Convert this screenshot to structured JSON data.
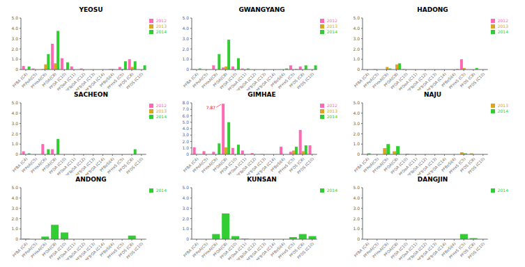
{
  "chart_data": [
    {
      "type": "bar",
      "title": "YEOSU",
      "categories": [
        "PFBA (C4)",
        "PFPeA(C5)",
        "PFHxA(C6)",
        "PFOA(C8)",
        "PFDA (C10)",
        "PFDoA (C11)",
        "PFTeDA (C12)",
        "PFTrDA (C13)",
        "PFTrOA (C14)",
        "PFBeSi(4)",
        "PFHxS (C5)",
        "PFOS (C8)",
        "PFDS (C10)"
      ],
      "series": [
        {
          "name": "2012",
          "color": "#FF69B4",
          "values": [
            0.35,
            0.1,
            0.05,
            2.5,
            1.1,
            0.3,
            0.1,
            0.0,
            0.0,
            0.05,
            0.25,
            1.0,
            0.0
          ]
        },
        {
          "name": "2013",
          "color": "#DAA520",
          "values": [
            0.0,
            0.0,
            0.5,
            0.6,
            0.0,
            0.0,
            0.0,
            0.0,
            0.0,
            0.05,
            0.05,
            0.25,
            0.0
          ]
        },
        {
          "name": "2014",
          "color": "#32CD32",
          "values": [
            0.3,
            0.0,
            1.5,
            3.75,
            0.7,
            0.0,
            0.0,
            0.0,
            0.0,
            0.0,
            0.8,
            0.8,
            0.4
          ]
        }
      ],
      "ylim": [
        0,
        5.0
      ],
      "yticks": [
        0,
        {
          "value": 1.0,
          "label": "1.0"
        },
        {
          "value": 2.0,
          "label": "2.0"
        },
        {
          "value": 3.0,
          "label": "3.0"
        },
        {
          "value": 4.0,
          "label": "4.0"
        },
        {
          "value": 5.0,
          "label": "5.0"
        }
      ],
      "grid": false,
      "legend": "upper right"
    },
    {
      "type": "bar",
      "title": "GWANGYANG",
      "categories": [
        "PFBA (C4)",
        "PFPeA(C5)",
        "PFHxA(C6)",
        "PFOA(C8)",
        "PFDA (C10)",
        "PFDoA (C11)",
        "PFTeDA (C12)",
        "PFTrDA (C13)",
        "PFTrOA (C14)",
        "PFBeSi(4)",
        "PFHxS (C5)",
        "PFOS (C8)",
        "PFDS (C10)"
      ],
      "series": [
        {
          "name": "2012",
          "color": "#FF69B4",
          "values": [
            0.05,
            0.0,
            0.4,
            0.2,
            0.3,
            0.1,
            0.0,
            0.0,
            0.0,
            0.0,
            0.4,
            0.3,
            0.0
          ]
        },
        {
          "name": "2013",
          "color": "#DAA520",
          "values": [
            0.0,
            0.0,
            0.0,
            0.3,
            0.0,
            0.0,
            0.0,
            0.0,
            0.0,
            0.0,
            0.0,
            0.0,
            0.0
          ]
        },
        {
          "name": "2014",
          "color": "#32CD32",
          "values": [
            0.1,
            0.0,
            1.5,
            2.9,
            1.1,
            0.1,
            0.0,
            0.0,
            0.0,
            0.1,
            0.05,
            0.4,
            0.4
          ]
        }
      ],
      "ylim": [
        0,
        5.0
      ],
      "yticks": [
        0,
        {
          "value": 1.0,
          "label": "1.0"
        },
        {
          "value": 2.0,
          "label": "2.0"
        },
        {
          "value": 3.0,
          "label": "3.0"
        },
        {
          "value": 4.0,
          "label": "4.0"
        },
        {
          "value": 5.0,
          "label": "5.0"
        }
      ],
      "grid": false,
      "legend": "upper right"
    },
    {
      "type": "bar",
      "title": "HADONG",
      "categories": [
        "PFBA (C4)",
        "PFPeA(C5)",
        "PFHxA(C6)",
        "PFOA(C8)",
        "PFDA (C10)",
        "PFDoA (C11)",
        "PFTeDA (C12)",
        "PFTrDA (C13)",
        "PFTrOA (C14)",
        "PFBeSi(4)",
        "PFHxS (C5)",
        "PFOS (C8)",
        "PFDS (C10)"
      ],
      "series": [
        {
          "name": "2012",
          "color": "#FF69B4",
          "values": [
            0.0,
            0.05,
            0.0,
            0.0,
            0.05,
            0.0,
            0.0,
            0.0,
            0.0,
            0.0,
            1.0,
            0.0,
            0.0
          ]
        },
        {
          "name": "2013",
          "color": "#DAA520",
          "values": [
            0.0,
            0.0,
            0.25,
            0.5,
            0.0,
            0.0,
            0.0,
            0.0,
            0.0,
            0.0,
            0.15,
            0.0,
            0.0
          ]
        },
        {
          "name": "2014",
          "color": "#32CD32",
          "values": [
            0.0,
            0.0,
            0.1,
            0.6,
            0.0,
            0.0,
            0.0,
            0.0,
            0.0,
            0.05,
            0.0,
            0.15,
            0.0
          ]
        }
      ],
      "ylim": [
        0,
        5.0
      ],
      "yticks": [
        0,
        {
          "value": 1.0,
          "label": "1.0"
        },
        {
          "value": 2.0,
          "label": "2.0"
        },
        {
          "value": 3.0,
          "label": "3.0"
        },
        {
          "value": 4.0,
          "label": "4.0"
        },
        {
          "value": 5.0,
          "label": "5.0"
        }
      ],
      "grid": false,
      "legend": "upper right"
    },
    {
      "type": "bar",
      "title": "SACHEON",
      "categories": [
        "PFBA (C4)",
        "PFPeA(C5)",
        "PFHxA(C6)",
        "PFOA(C8)",
        "PFDA (C10)",
        "PFDoA (C11)",
        "PFTeDA (C12)",
        "PFTrDA (C13)",
        "PFTrOA (C14)",
        "PFBeSi(4)",
        "PFHxS (C5)",
        "PFOS (C8)",
        "PFDS (C10)"
      ],
      "series": [
        {
          "name": "2012",
          "color": "#FF69B4",
          "values": [
            0.3,
            0.0,
            1.0,
            0.5,
            0.0,
            0.0,
            0.0,
            0.0,
            0.0,
            0.0,
            0.0,
            0.0,
            0.0
          ]
        },
        {
          "name": "2013",
          "color": "#DAA520",
          "values": [
            0.0,
            0.0,
            0.0,
            0.0,
            0.0,
            0.0,
            0.0,
            0.0,
            0.0,
            0.0,
            0.0,
            0.0,
            0.0
          ]
        },
        {
          "name": "2014",
          "color": "#32CD32",
          "values": [
            0.1,
            0.0,
            0.5,
            1.5,
            0.0,
            0.0,
            0.0,
            0.0,
            0.0,
            0.0,
            0.0,
            0.5,
            0.0
          ]
        }
      ],
      "ylim": [
        0,
        5.0
      ],
      "yticks": [
        0,
        {
          "value": 1.0,
          "label": "1.0"
        },
        {
          "value": 2.0,
          "label": "2.0"
        },
        {
          "value": 3.0,
          "label": "3.0"
        },
        {
          "value": 4.0,
          "label": "4.0"
        },
        {
          "value": 5.0,
          "label": "5.0"
        }
      ],
      "grid": false,
      "legend": "upper right"
    },
    {
      "type": "bar",
      "title": "GIMHAE",
      "categories": [
        "PFBA (C4)",
        "PFPeA(C5)",
        "PFHxA(C6)",
        "PFOA(C8)",
        "PFDA (C10)",
        "PFDoA (C11)",
        "PFTeDA (C12)",
        "PFTrDA (C13)",
        "PFTrOA (C14)",
        "PFBeSi(4)",
        "PFHxS (C5)",
        "PFOS (C8)",
        "PFDS (C10)"
      ],
      "series": [
        {
          "name": "2012",
          "color": "#FF69B4",
          "values": [
            1.1,
            0.5,
            0.4,
            7.87,
            1.0,
            0.6,
            0.2,
            0.05,
            0.0,
            1.2,
            0.4,
            3.8,
            1.4
          ]
        },
        {
          "name": "2013",
          "color": "#DAA520",
          "values": [
            0.0,
            0.0,
            0.0,
            1.1,
            0.0,
            0.0,
            0.0,
            0.0,
            0.0,
            0.0,
            0.6,
            0.5,
            0.0
          ]
        },
        {
          "name": "2014",
          "color": "#32CD32",
          "values": [
            0.0,
            0.0,
            1.7,
            5.0,
            1.5,
            0.0,
            0.0,
            0.0,
            0.0,
            0.0,
            1.2,
            1.4,
            0.0
          ]
        }
      ],
      "ylim": [
        0,
        8.0
      ],
      "yticks": [
        0,
        {
          "value": 1.0,
          "label": "1.0"
        },
        {
          "value": 2.0,
          "label": "2.0"
        },
        {
          "value": 3.0,
          "label": "3.0"
        },
        {
          "value": 4.0,
          "label": "4.0"
        },
        {
          "value": 5.0,
          "label": "5.0"
        },
        {
          "value": 6.0,
          "label": "6.0"
        },
        {
          "value": 7.0,
          "label": "7.0"
        },
        {
          "value": 8.0,
          "label": "8.0"
        }
      ],
      "grid": false,
      "legend": "upper right",
      "annotations": [
        {
          "text": "7.87",
          "x": "PFOA(C8)",
          "series": "2012",
          "color": "red"
        }
      ]
    },
    {
      "type": "bar",
      "title": "NAJU",
      "categories": [
        "PFBA (C4)",
        "PFPeA(C5)",
        "PFHxA(C6)",
        "PFOA(C8)",
        "PFDA (C10)",
        "PFDoA (C11)",
        "PFTeDA (C12)",
        "PFTrDA (C13)",
        "PFTrOA (C14)",
        "PFBeSi(4)",
        "PFHxS (C5)",
        "PFOS (C8)",
        "PFDS (C10)"
      ],
      "series": [
        {
          "name": "2013",
          "color": "#DAA520",
          "values": [
            0.0,
            0.0,
            0.6,
            0.3,
            0.0,
            0.0,
            0.0,
            0.0,
            0.0,
            0.0,
            0.2,
            0.1,
            0.0
          ]
        },
        {
          "name": "2014",
          "color": "#32CD32",
          "values": [
            0.1,
            0.0,
            1.0,
            0.8,
            0.05,
            0.0,
            0.0,
            0.0,
            0.0,
            0.0,
            0.1,
            0.0,
            0.0
          ]
        }
      ],
      "ylim": [
        0,
        5.0
      ],
      "yticks": [
        0,
        {
          "value": 1.0,
          "label": "1.0"
        },
        {
          "value": 2.0,
          "label": "2.0"
        },
        {
          "value": 3.0,
          "label": "3.0"
        },
        {
          "value": 4.0,
          "label": "4.0"
        },
        {
          "value": 5.0,
          "label": "5.0"
        }
      ],
      "grid": false,
      "legend": "upper right"
    },
    {
      "type": "bar",
      "title": "ANDONG",
      "categories": [
        "PFBA (C4)",
        "PFPeA(C5)",
        "PFHxA(C6)",
        "PFOA(C8)",
        "PFDA (C10)",
        "PFDoA (C11)",
        "PFTeDA (C12)",
        "PFTrDA (C13)",
        "PFTrOA (C14)",
        "PFBeSi(4)",
        "PFHxS (C5)",
        "PFOS (C8)",
        "PFDS (C10)"
      ],
      "series": [
        {
          "name": "2014",
          "color": "#32CD32",
          "values": [
            0.05,
            0.0,
            0.25,
            1.4,
            0.65,
            0.0,
            0.0,
            0.0,
            0.0,
            0.0,
            0.0,
            0.35,
            0.0
          ]
        }
      ],
      "ylim": [
        0,
        5.0
      ],
      "yticks": [
        0,
        {
          "value": 1.0,
          "label": "1.0"
        },
        {
          "value": 2.0,
          "label": "2.0"
        },
        {
          "value": 3.0,
          "label": "3.0"
        },
        {
          "value": 4.0,
          "label": "4.0"
        },
        {
          "value": 5.0,
          "label": "5.0"
        }
      ],
      "grid": false,
      "legend": "upper right"
    },
    {
      "type": "bar",
      "title": "KUNSAN",
      "categories": [
        "PFBA (C4)",
        "PFPeA(C5)",
        "PFHxA(C6)",
        "PFOA(C8)",
        "PFDA (C10)",
        "PFDoA (C11)",
        "PFTeDA (C12)",
        "PFTrDA (C13)",
        "PFTrOA (C14)",
        "PFBeSi(4)",
        "PFHxS (C5)",
        "PFOS (C8)",
        "PFDS (C10)"
      ],
      "series": [
        {
          "name": "2014",
          "color": "#32CD32",
          "values": [
            0.0,
            0.0,
            0.5,
            2.5,
            0.3,
            0.05,
            0.0,
            0.0,
            0.0,
            0.0,
            0.2,
            0.5,
            0.3
          ]
        }
      ],
      "ylim": [
        0,
        5.0
      ],
      "yticks": [
        0,
        {
          "value": 1.0,
          "label": "1.0"
        },
        {
          "value": 2.0,
          "label": "2.0"
        },
        {
          "value": 3.0,
          "label": "3.0"
        },
        {
          "value": 4.0,
          "label": "4.0"
        },
        {
          "value": 5.0,
          "label": "5.0"
        }
      ],
      "grid": false,
      "legend": "upper right"
    },
    {
      "type": "bar",
      "title": "DANGJIN",
      "categories": [
        "PFBA (C4)",
        "PFPeA(C5)",
        "PFHxA(C6)",
        "PFOA(C8)",
        "PFDA (C10)",
        "PFDoA (C11)",
        "PFTeDA (C12)",
        "PFTrDA (C13)",
        "PFTrOA (C14)",
        "PFBeSi(4)",
        "PFHxS (C5)",
        "PFOS (C8)",
        "PFDS (C10)"
      ],
      "series": [
        {
          "name": "2014",
          "color": "#32CD32",
          "values": [
            0.0,
            0.0,
            0.0,
            0.0,
            0.0,
            0.0,
            0.0,
            0.0,
            0.0,
            0.0,
            0.5,
            0.1,
            0.0
          ]
        }
      ],
      "ylim": [
        0,
        5.0
      ],
      "yticks": [
        0,
        {
          "value": 1.0,
          "label": "1.0"
        },
        {
          "value": 2.0,
          "label": "2.0"
        },
        {
          "value": 3.0,
          "label": "3.0"
        },
        {
          "value": 4.0,
          "label": "4.0"
        },
        {
          "value": 5.0,
          "label": "5.0"
        }
      ],
      "grid": false,
      "legend": "upper right"
    }
  ]
}
